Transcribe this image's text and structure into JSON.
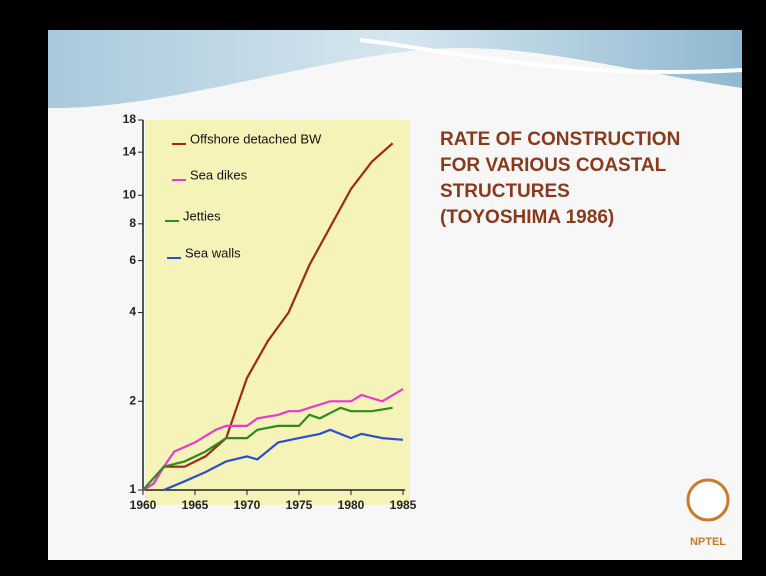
{
  "chart_data": {
    "type": "line",
    "title": [
      "RATE OF CONSTRUCTION",
      "FOR VARIOUS COASTAL",
      "STRUCTURES",
      "(TOYOSHIMA 1986)"
    ],
    "log_y": true,
    "xlim": [
      1960,
      1985
    ],
    "xticks": [
      1960,
      1965,
      1970,
      1975,
      1980,
      1985
    ],
    "ylim": [
      1,
      18
    ],
    "yticks": [
      1,
      2,
      4,
      6,
      8,
      10,
      14,
      18
    ],
    "background": "#f5f3b8",
    "series": [
      {
        "name": "Offshore detached BW",
        "color": "#9b2a1a",
        "x": [
          1960,
          1961,
          1962,
          1964,
          1966,
          1968,
          1969,
          1970,
          1972,
          1974,
          1976,
          1978,
          1980,
          1982,
          1984
        ],
        "values": [
          1,
          1.05,
          1.2,
          1.2,
          1.3,
          1.5,
          1.9,
          2.4,
          3.2,
          4,
          5.8,
          7.8,
          10.5,
          13,
          15
        ]
      },
      {
        "name": "Sea dikes",
        "color": "#e83ad0",
        "x": [
          1960,
          1961,
          1962,
          1963,
          1965,
          1967,
          1968,
          1970,
          1971,
          1973,
          1974,
          1975,
          1976,
          1978,
          1980,
          1981,
          1983,
          1985
        ],
        "values": [
          1,
          1.05,
          1.2,
          1.35,
          1.45,
          1.6,
          1.65,
          1.65,
          1.75,
          1.8,
          1.85,
          1.85,
          1.9,
          2,
          2,
          2.1,
          2,
          2.2
        ]
      },
      {
        "name": "Jetties",
        "color": "#2e8b20",
        "x": [
          1960,
          1962,
          1964,
          1966,
          1968,
          1970,
          1971,
          1973,
          1975,
          1976,
          1977,
          1979,
          1980,
          1982,
          1984
        ],
        "values": [
          1,
          1.2,
          1.25,
          1.35,
          1.5,
          1.5,
          1.6,
          1.65,
          1.65,
          1.8,
          1.75,
          1.9,
          1.85,
          1.85,
          1.9
        ]
      },
      {
        "name": "Sea walls",
        "color": "#2a4fd0",
        "x": [
          1962,
          1964,
          1966,
          1968,
          1970,
          1971,
          1973,
          1975,
          1977,
          1978,
          1980,
          1981,
          1983,
          1985
        ],
        "values": [
          1,
          1.07,
          1.15,
          1.25,
          1.3,
          1.27,
          1.45,
          1.5,
          1.55,
          1.6,
          1.5,
          1.55,
          1.5,
          1.48
        ]
      }
    ],
    "logo": "NPTEL"
  }
}
